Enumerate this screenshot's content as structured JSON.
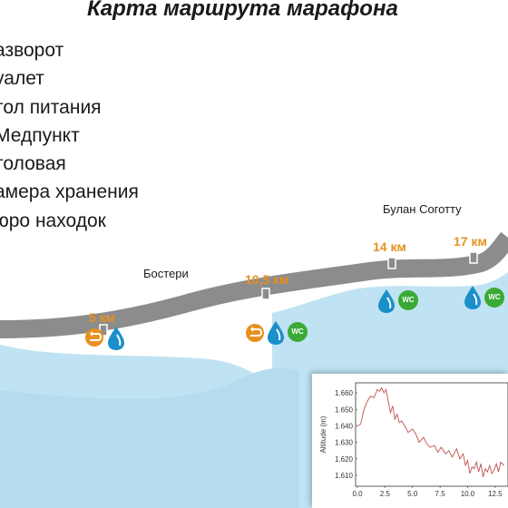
{
  "title": "Карта маршрута марафона",
  "legend": [
    "азворот",
    "уалет",
    "тол питания",
    "Медпункт",
    "толовая",
    "амера хранения",
    "юро находок"
  ],
  "places": {
    "bosteri": "Бостери",
    "bulan": "Булан Соготту"
  },
  "markers": {
    "km5": "5 км",
    "km10_5": "10,5 км",
    "km14": "14 км",
    "km17": "17 км"
  },
  "wc_label": "WC",
  "colors": {
    "water": "#bfe3f2",
    "road": "#8c8c8c",
    "road_edge": "#ffffff",
    "km": "#e8901f",
    "wc": "#3aaa35",
    "drop": "#1a8fc9",
    "turn": "#e8901f"
  },
  "icons": [
    "u-turn-icon",
    "water-drop-icon",
    "wc-icon"
  ],
  "chart_data": {
    "type": "line",
    "xlabel": "",
    "ylabel": "Altitude (m)",
    "xlim": [
      0,
      13.5
    ],
    "ylim": [
      1605,
      1665
    ],
    "xticks": [
      "0.0",
      "2.5",
      "5.0",
      "7.5",
      "10.0",
      "12.5"
    ],
    "yticks": [
      "1.610",
      "1.620",
      "1.630",
      "1.640",
      "1.650",
      "1.660"
    ],
    "series": [
      {
        "name": "",
        "x": [
          0,
          0.3,
          0.6,
          0.9,
          1.2,
          1.5,
          1.8,
          2.0,
          2.2,
          2.4,
          2.6,
          2.8,
          3.0,
          3.2,
          3.4,
          3.6,
          3.8,
          4.0,
          4.3,
          4.6,
          5.0,
          5.3,
          5.6,
          6.0,
          6.3,
          6.6,
          7.0,
          7.3,
          7.6,
          8.0,
          8.3,
          8.6,
          9.0,
          9.3,
          9.6,
          9.8,
          10.0,
          10.2,
          10.4,
          10.6,
          10.8,
          11.0,
          11.2,
          11.4,
          11.6,
          11.8,
          12.0,
          12.2,
          12.4,
          12.6,
          12.8,
          13.0,
          13.3
        ],
        "y": [
          1640,
          1641,
          1650,
          1655,
          1658,
          1657,
          1662,
          1661,
          1663,
          1660,
          1662,
          1655,
          1648,
          1652,
          1644,
          1647,
          1642,
          1643,
          1640,
          1636,
          1638,
          1635,
          1630,
          1633,
          1629,
          1627,
          1628,
          1624,
          1627,
          1623,
          1625,
          1621,
          1626,
          1620,
          1623,
          1616,
          1619,
          1611,
          1615,
          1614,
          1618,
          1612,
          1617,
          1609,
          1614,
          1612,
          1616,
          1611,
          1613,
          1617,
          1612,
          1618,
          1616
        ]
      }
    ]
  }
}
